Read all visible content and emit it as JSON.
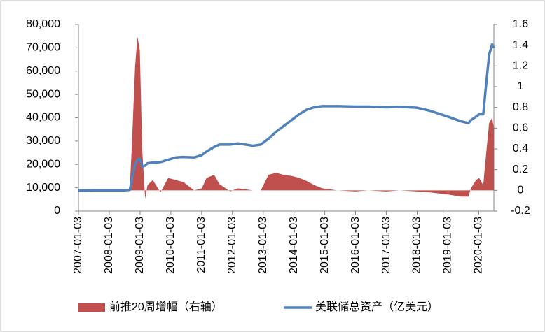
{
  "chart_data": {
    "type": "dual-axis",
    "x": [
      "2007-01-03",
      "2007-07-04",
      "2008-01-02",
      "2008-07-02",
      "2008-09-03",
      "2008-10-01",
      "2008-11-05",
      "2008-12-03",
      "2008-12-31",
      "2009-01-28",
      "2009-03-04",
      "2009-04-01",
      "2009-06-03",
      "2009-09-02",
      "2009-12-02",
      "2010-03-03",
      "2010-06-02",
      "2010-10-06",
      "2011-01-05",
      "2011-03-02",
      "2011-06-01",
      "2011-08-03",
      "2011-12-07",
      "2012-03-07",
      "2012-06-06",
      "2012-09-05",
      "2012-12-05",
      "2013-03-06",
      "2013-06-05",
      "2013-09-04",
      "2013-12-04",
      "2014-03-05",
      "2014-06-04",
      "2014-09-03",
      "2014-12-03",
      "2015-06-03",
      "2016-01-06",
      "2016-06-01",
      "2017-01-04",
      "2017-06-07",
      "2018-01-03",
      "2018-06-06",
      "2019-01-02",
      "2019-06-05",
      "2019-09-04",
      "2019-10-02",
      "2019-12-04",
      "2020-01-08",
      "2020-02-26",
      "2020-03-25",
      "2020-05-06",
      "2020-06-10",
      "2020-07-01"
    ],
    "series": [
      {
        "name": "前推20周增幅（右轴）",
        "color": "#c0504d",
        "type": "area",
        "axis": "y2",
        "values": [
          0,
          0.01,
          0.01,
          0,
          0.02,
          0.5,
          1.2,
          1.48,
          1.35,
          0.4,
          -0.08,
          0.05,
          0.1,
          -0.02,
          0.12,
          0.1,
          0.08,
          0,
          0.02,
          0.12,
          0.15,
          0.06,
          -0.01,
          0.02,
          0.01,
          0,
          0,
          0.15,
          0.17,
          0.15,
          0.14,
          0.12,
          0.09,
          0.05,
          0.02,
          0,
          -0.01,
          0,
          -0.01,
          0,
          -0.01,
          -0.02,
          -0.04,
          -0.06,
          -0.06,
          0.02,
          0.1,
          0.12,
          0.05,
          0.3,
          0.65,
          0.7,
          0.6
        ]
      },
      {
        "name": "美联储总资产（亿美元）",
        "color": "#4f81bd",
        "type": "line",
        "values": [
          8800,
          8900,
          8900,
          8900,
          9100,
          14000,
          20000,
          22000,
          22500,
          19000,
          19500,
          20500,
          20800,
          21000,
          22000,
          23000,
          23200,
          23000,
          24000,
          25500,
          27500,
          28500,
          28500,
          29000,
          28500,
          28000,
          28500,
          31000,
          34000,
          36500,
          39000,
          41500,
          43500,
          44500,
          45000,
          45000,
          44800,
          44800,
          44500,
          44700,
          44300,
          43000,
          40500,
          38500,
          37700,
          39000,
          40500,
          41500,
          41500,
          52000,
          67000,
          71500,
          70000
        ]
      }
    ],
    "xlim": [
      "2007-01-03",
      "2020-07-01"
    ],
    "xticks": [
      "2007-01-03",
      "2008-01-03",
      "2009-01-03",
      "2010-01-03",
      "2011-01-03",
      "2012-01-03",
      "2013-01-03",
      "2014-01-03",
      "2015-01-03",
      "2016-01-03",
      "2017-01-03",
      "2018-01-03",
      "2019-01-03",
      "2020-01-03"
    ],
    "ylim": [
      0,
      80000
    ],
    "yticks": [
      0,
      {
        "value": 10000,
        "label": "10,000"
      },
      {
        "value": 20000,
        "label": "20,000"
      },
      {
        "value": 30000,
        "label": "30,000"
      },
      {
        "value": 40000,
        "label": "40,000"
      },
      {
        "value": 50000,
        "label": "50,000"
      },
      {
        "value": 60000,
        "label": "60,000"
      },
      {
        "value": 70000,
        "label": "70,000"
      },
      {
        "value": 80000,
        "label": "80,000"
      }
    ],
    "y2lim": [
      -0.2,
      1.6
    ],
    "y2ticks": [
      -0.2,
      0,
      0.2,
      0.4,
      0.6,
      0.8,
      1,
      1.2,
      1.4,
      1.6
    ]
  }
}
